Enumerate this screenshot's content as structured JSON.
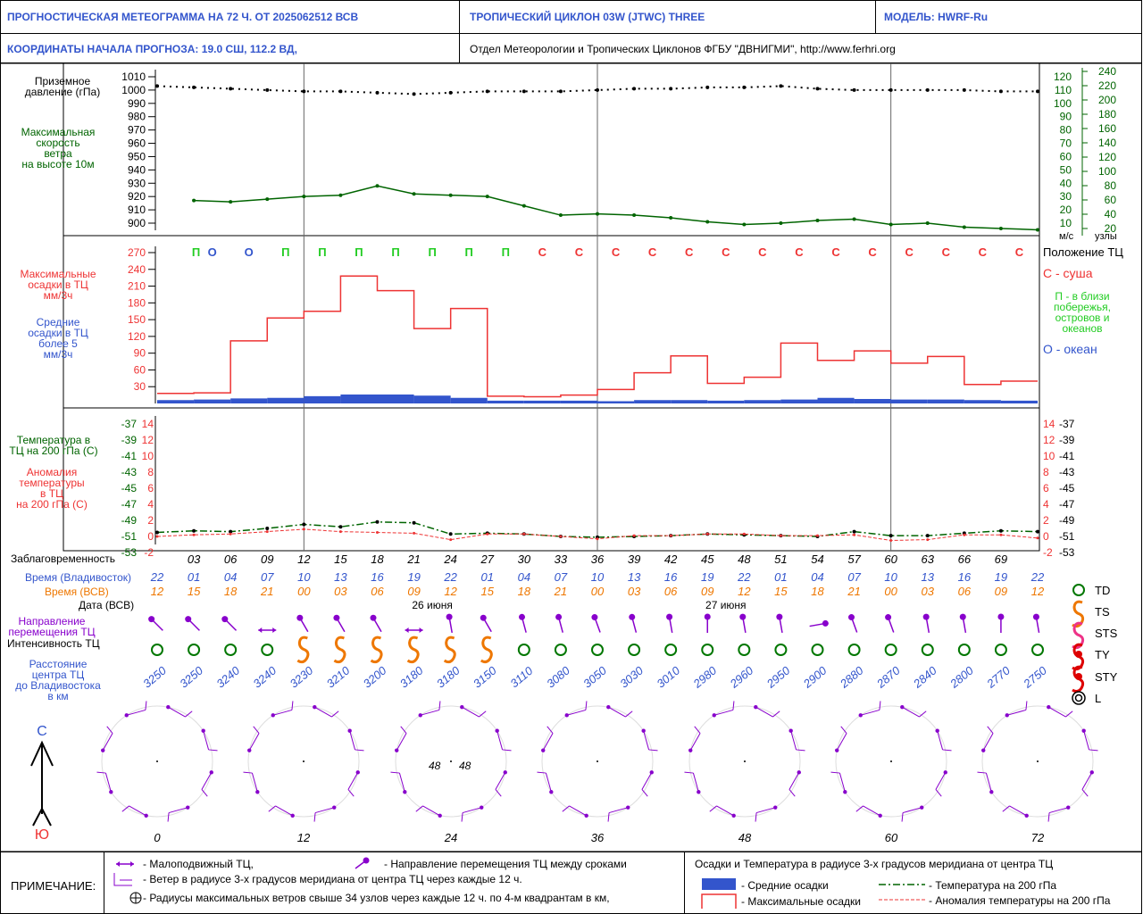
{
  "header": {
    "title": "ПРОГНОСТИЧЕСКАЯ МЕТЕОГРАММА НА 72 Ч. ОТ 2025062512 ВСВ",
    "cyclone": "ТРОПИЧЕСКИЙ ЦИКЛОН  03W  (JTWC)   THREE",
    "model": "МОДЕЛЬ:   HWRF-Ru",
    "coords": "КООРДИНАТЫ НАЧАЛА ПРОГНОЗА:  19.0   СШ,    112.2   ВД,",
    "dept": "Отдел Метеорологии и Тропических Циклонов ФГБУ \"ДВНИГМИ\",   http://www.ferhri.org"
  },
  "colors": {
    "pressure": "#000000",
    "wind": "#006400",
    "maxprecip": "#ee3333",
    "avgprecip": "#3355cc",
    "purple": "#8800cc",
    "orange": "#ee7700",
    "green_circle": "#007700",
    "blue": "#3355cc"
  },
  "left_labels": {
    "pressure": [
      "Приземное",
      "давление (гПа)"
    ],
    "wind": [
      "Максимальная",
      "скорость",
      "ветра",
      "на высоте 10м"
    ],
    "maxprecip": [
      "Максимальные",
      "осадки в ТЦ",
      "мм/3ч"
    ],
    "avgprecip": [
      "Средние",
      "осадки в ТЦ",
      "более 5",
      "мм/3ч"
    ],
    "temp": [
      "Температура в",
      "ТЦ на 200 гПа (С)"
    ],
    "anom": [
      "Аномалия",
      "температуры",
      "в ТЦ",
      "на 200 гПа (С)"
    ],
    "lead": "Заблаговременность",
    "vlad": "Время (Владивосток)",
    "vsv": "Время (ВСВ)",
    "date": "Дата (ВСВ)",
    "direction": [
      "Направление",
      "перемещения ТЦ"
    ],
    "intensity": "Интенсивность ТЦ",
    "distance": [
      "Расстояние",
      "центра ТЦ",
      "до Владивостока",
      "в км"
    ]
  },
  "right_labels": {
    "wind_units": "м/с",
    "knots_units": "узлы",
    "position_title": "Положение ТЦ",
    "land": "С - суша",
    "coast": [
      "П - в близи",
      "побережья,",
      "островов и",
      "океанов"
    ],
    "ocean": "О - океан"
  },
  "axes": {
    "pressure_ticks": [
      1010,
      1000,
      990,
      980,
      970,
      960,
      950,
      940,
      930,
      920,
      910,
      900
    ],
    "ms_ticks": [
      120,
      110,
      100,
      90,
      80,
      70,
      60,
      50,
      40,
      30,
      20,
      10
    ],
    "knot_ticks": [
      240,
      220,
      200,
      180,
      160,
      140,
      120,
      100,
      80,
      60,
      40,
      20
    ],
    "precip_ticks": [
      270,
      240,
      210,
      180,
      150,
      120,
      90,
      60,
      30
    ],
    "temp_ticks": [
      -37,
      -39,
      -41,
      -43,
      -45,
      -47,
      -49,
      -51,
      -53
    ],
    "anom_ticks": [
      14,
      12,
      10,
      8,
      6,
      4,
      2,
      0,
      -2
    ]
  },
  "chart_data": {
    "type": "line",
    "lead_hours": [
      "03",
      "06",
      "09",
      "12",
      "15",
      "18",
      "21",
      "24",
      "27",
      "30",
      "33",
      "36",
      "39",
      "42",
      "45",
      "48",
      "51",
      "54",
      "57",
      "60",
      "63",
      "66",
      "69"
    ],
    "time_vladivostok": [
      "22",
      "01",
      "04",
      "07",
      "10",
      "13",
      "16",
      "19",
      "22",
      "01",
      "04",
      "07",
      "10",
      "13",
      "16",
      "19",
      "22",
      "01",
      "04",
      "07",
      "10",
      "13",
      "16",
      "19",
      "22"
    ],
    "time_vsv": [
      "12",
      "15",
      "18",
      "21",
      "00",
      "03",
      "06",
      "09",
      "12",
      "15",
      "18",
      "21",
      "00",
      "03",
      "06",
      "09",
      "12",
      "15",
      "18",
      "21",
      "00",
      "03",
      "06",
      "09",
      "12"
    ],
    "dates": [
      {
        "label": "26 июня",
        "index": 7.5
      },
      {
        "label": "27 июня",
        "index": 15.5
      }
    ],
    "x": [
      0,
      3,
      6,
      9,
      12,
      15,
      18,
      21,
      24,
      27,
      30,
      33,
      36,
      39,
      42,
      45,
      48,
      51,
      54,
      57,
      60,
      63,
      66,
      69,
      72
    ],
    "pressure_hpa": [
      1003,
      1002,
      1001,
      1000,
      999,
      999,
      998,
      997,
      998,
      999,
      999,
      999,
      1000,
      1001,
      1001,
      1002,
      1002,
      1003,
      1001,
      1000,
      1000,
      1000,
      1000,
      999,
      999
    ],
    "wind_ms": [
      null,
      27,
      26,
      28,
      30,
      31,
      38,
      32,
      31,
      30,
      23,
      16,
      17,
      16,
      14,
      11,
      9,
      10,
      12,
      13,
      9,
      10,
      7,
      6,
      5
    ],
    "position_codes": [
      "П",
      "О",
      "О",
      "П",
      "П",
      "П",
      "П",
      "П",
      "П",
      "П",
      "С",
      "С",
      "С",
      "С",
      "С",
      "С",
      "С",
      "С",
      "С",
      "С",
      "С",
      "С",
      "С",
      "С"
    ],
    "max_precip": [
      18,
      19,
      112,
      153,
      165,
      228,
      202,
      134,
      170,
      13,
      12,
      15,
      25,
      55,
      85,
      36,
      47,
      108,
      77,
      94,
      72,
      84,
      34,
      40
    ],
    "avg_precip": [
      6,
      7,
      9,
      10,
      13,
      16,
      16,
      14,
      10,
      5,
      5,
      5,
      4,
      6,
      6,
      5,
      6,
      7,
      10,
      8,
      7,
      7,
      6,
      5
    ],
    "temp_200hpa": [
      -50.5,
      -50.3,
      -50.4,
      -50.0,
      -49.5,
      -49.8,
      -49.2,
      -49.3,
      -50.7,
      -50.6,
      -50.7,
      -51.0,
      -51.1,
      -51.0,
      -50.9,
      -50.7,
      -50.8,
      -50.9,
      -51.0,
      -50.4,
      -50.9,
      -50.9,
      -50.6,
      -50.3,
      -50.4
    ],
    "anom_200hpa": [
      0,
      0.2,
      0.3,
      0.6,
      0.9,
      0.6,
      0.5,
      0.4,
      -0.4,
      0.3,
      0.3,
      0,
      -0.3,
      0.1,
      0.1,
      0.3,
      0.3,
      0.1,
      0.1,
      0.2,
      -0.5,
      -0.4,
      0.2,
      0.2,
      -0.2
    ],
    "intensity": [
      "TD",
      "TD",
      "TD",
      "TD",
      "TS",
      "TS",
      "TS",
      "TS",
      "TS",
      "TS",
      "TD",
      "TD",
      "TD",
      "TD",
      "TD",
      "TD",
      "TD",
      "TD",
      "TD",
      "TD",
      "TD",
      "TD",
      "TD",
      "TD",
      "TD"
    ],
    "direction_deg": [
      315,
      315,
      315,
      "stationary",
      330,
      330,
      330,
      "stationary",
      350,
      330,
      345,
      345,
      340,
      345,
      350,
      0,
      350,
      350,
      "e",
      340,
      340,
      350,
      350,
      0,
      350
    ],
    "distance_km": [
      3250,
      3250,
      3240,
      3240,
      3230,
      3210,
      3200,
      3180,
      3180,
      3150,
      3110,
      3080,
      3050,
      3030,
      3010,
      2980,
      2960,
      2950,
      2900,
      2880,
      2870,
      2840,
      2800,
      2770,
      2750
    ],
    "radii_hours": [
      "0",
      "12",
      "24",
      "36",
      "48",
      "60",
      "72"
    ],
    "radii_label_24": "48",
    "radii_label_24b": "48"
  },
  "legend_right": {
    "td": "TD",
    "ts": "TS",
    "sts": "STS",
    "ty": "TY",
    "sty": "STY",
    "l": "L"
  },
  "compass": {
    "north": "С",
    "south": "Ю"
  },
  "footer": {
    "title": "ПРИМЕЧАНИЕ:",
    "stationary": "- Малоподвижный ТЦ,",
    "direction": "- Направление перемещения ТЦ между сроками",
    "wind_radius": "- Ветер в радиусе 3-х градусов меридиана от центра ТЦ через каждые 12 ч.",
    "radii": "- Радиусы максимальных ветров свыше 34 узлов через каждые 12 ч. по 4-м квадрантам в км,",
    "right_title": "Осадки и Температура в радиусе 3-х градусов меридиана от центра ТЦ",
    "avg": "- Средние осадки",
    "max": "- Максимальные осадки",
    "temp": "- Температура на 200 гПа",
    "anom": "- Аномалия температуры на 200 гПа"
  }
}
